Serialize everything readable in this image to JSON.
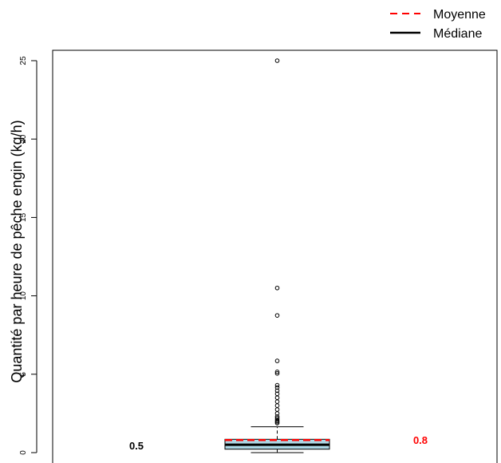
{
  "chart_data": {
    "type": "boxplot",
    "title": "",
    "xlabel": "",
    "ylabel": "Quantité par heure de pêche engin (kg/h)",
    "ylim": [
      -0.5,
      25.5
    ],
    "yticks": [
      0,
      5,
      10,
      15,
      20,
      25
    ],
    "yticklabels": [
      "0",
      "5",
      "10",
      "15",
      "20",
      "25"
    ],
    "y_tick_label_rotation": "vertical",
    "box": {
      "min": 0.0,
      "q1": 0.22,
      "median": 0.5,
      "mean": 0.8,
      "q3": 0.85,
      "upper_whisker": 1.65,
      "outliers": [
        25.0,
        10.5,
        8.75,
        5.85,
        5.15,
        5.05,
        4.3,
        4.15,
        3.95,
        3.75,
        3.5,
        3.25,
        3.0,
        2.75,
        2.5,
        2.3,
        2.2,
        2.1,
        2.02,
        1.95,
        1.88
      ]
    },
    "legend": {
      "position": "top-right",
      "items": [
        {
          "label": "Moyenne",
          "color": "#ff0000",
          "style": "dashed"
        },
        {
          "label": "Médiane",
          "color": "#000000",
          "style": "solid"
        }
      ]
    },
    "annotations": {
      "median_label": "0.5",
      "mean_label": "0.8"
    },
    "colors": {
      "box_fill": "#add8e6",
      "median": "#000000",
      "mean": "#ff0000",
      "mean_label": "#ff0000",
      "median_label": "#000000"
    }
  }
}
